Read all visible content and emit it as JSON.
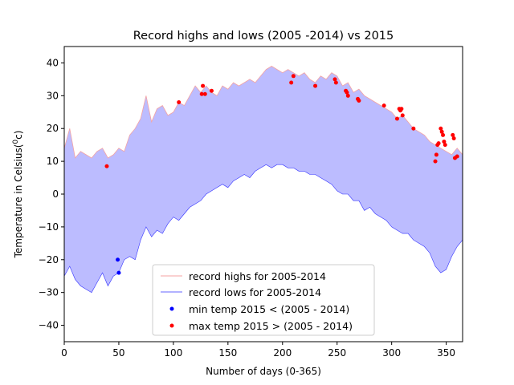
{
  "chart_data": {
    "type": "line",
    "title": "Record highs and lows (2005 -2014) vs 2015",
    "xlabel": "Number of days (0-365)",
    "ylabel_prefix": "Temperature in Celsius(",
    "ylabel_sup": "0",
    "ylabel_suffix": "c)",
    "xlim": [
      0,
      365
    ],
    "ylim": [
      -45,
      45
    ],
    "xticks": [
      0,
      50,
      100,
      150,
      200,
      250,
      300,
      350
    ],
    "yticks": [
      -40,
      -30,
      -20,
      -10,
      0,
      10,
      20,
      30,
      40
    ],
    "grid": false,
    "legend_position": "lower-center",
    "colors": {
      "highs_line": "#f4a3a3",
      "lows_line": "#3333ff",
      "fill": "#bcbcff",
      "min_points": "#0000ff",
      "max_points": "#ff0000"
    },
    "series": [
      {
        "name": "record highs for 2005-2014",
        "kind": "line",
        "x": [
          0,
          5,
          10,
          15,
          20,
          25,
          30,
          35,
          40,
          45,
          50,
          55,
          60,
          65,
          70,
          75,
          80,
          85,
          90,
          95,
          100,
          105,
          110,
          115,
          120,
          125,
          130,
          135,
          140,
          145,
          150,
          155,
          160,
          165,
          170,
          175,
          180,
          185,
          190,
          195,
          200,
          205,
          210,
          215,
          220,
          225,
          230,
          235,
          240,
          245,
          250,
          255,
          260,
          265,
          270,
          275,
          280,
          285,
          290,
          295,
          300,
          305,
          310,
          315,
          320,
          325,
          330,
          335,
          340,
          345,
          350,
          355,
          360,
          365
        ],
        "y": [
          14,
          20,
          11,
          13,
          12,
          11,
          13,
          14,
          11,
          12,
          14,
          13,
          18,
          20,
          23,
          30,
          22,
          26,
          27,
          24,
          25,
          28,
          27,
          30,
          33,
          31,
          33,
          31,
          30,
          33,
          32,
          34,
          33,
          34,
          35,
          34,
          36,
          38,
          39,
          38,
          37,
          38,
          37,
          36,
          37,
          35,
          34,
          36,
          35,
          37,
          36,
          33,
          34,
          31,
          32,
          30,
          29,
          28,
          27,
          26,
          25,
          23,
          24,
          22,
          20,
          19,
          18,
          16,
          15,
          14,
          13,
          12,
          14,
          12
        ]
      },
      {
        "name": "record lows for 2005-2014",
        "kind": "line",
        "x": [
          0,
          5,
          10,
          15,
          20,
          25,
          30,
          35,
          40,
          45,
          50,
          55,
          60,
          65,
          70,
          75,
          80,
          85,
          90,
          95,
          100,
          105,
          110,
          115,
          120,
          125,
          130,
          135,
          140,
          145,
          150,
          155,
          160,
          165,
          170,
          175,
          180,
          185,
          190,
          195,
          200,
          205,
          210,
          215,
          220,
          225,
          230,
          235,
          240,
          245,
          250,
          255,
          260,
          265,
          270,
          275,
          280,
          285,
          290,
          295,
          300,
          305,
          310,
          315,
          320,
          325,
          330,
          335,
          340,
          345,
          350,
          355,
          360,
          365
        ],
        "y": [
          -25,
          -22,
          -26,
          -28,
          -29,
          -30,
          -27,
          -24,
          -28,
          -25,
          -24,
          -20,
          -19,
          -20,
          -14,
          -10,
          -13,
          -11,
          -12,
          -9,
          -7,
          -8,
          -6,
          -4,
          -3,
          -2,
          0,
          1,
          2,
          3,
          2,
          4,
          5,
          6,
          5,
          7,
          8,
          9,
          8,
          9,
          9,
          8,
          8,
          7,
          7,
          6,
          6,
          5,
          4,
          3,
          1,
          0,
          0,
          -2,
          -2,
          -5,
          -4,
          -6,
          -7,
          -8,
          -10,
          -11,
          -12,
          -12,
          -14,
          -15,
          -16,
          -18,
          -22,
          -24,
          -23,
          -19,
          -16,
          -14
        ]
      },
      {
        "name": "min temp 2015 < (2005 - 2014)",
        "kind": "scatter",
        "x": [
          49,
          50
        ],
        "y": [
          -20,
          -24
        ]
      },
      {
        "name": "max temp 2015 > (2005 - 2014)",
        "kind": "scatter",
        "x": [
          39,
          105,
          126,
          127,
          129,
          135,
          208,
          210,
          230,
          248,
          249,
          258,
          259,
          260,
          269,
          270,
          293,
          305,
          307,
          308,
          309,
          310,
          320,
          340,
          341,
          342,
          343,
          345,
          346,
          347,
          348,
          349,
          356,
          357,
          358,
          360
        ],
        "y": [
          8.5,
          28,
          30.5,
          33,
          30.5,
          31.5,
          34,
          36,
          33,
          35,
          34,
          31.5,
          31,
          30,
          29,
          28.5,
          27,
          23,
          26,
          25.5,
          26,
          24,
          20,
          10,
          12,
          15,
          15.5,
          20,
          19,
          18,
          16,
          15,
          18,
          17,
          11,
          11.5
        ]
      }
    ]
  }
}
